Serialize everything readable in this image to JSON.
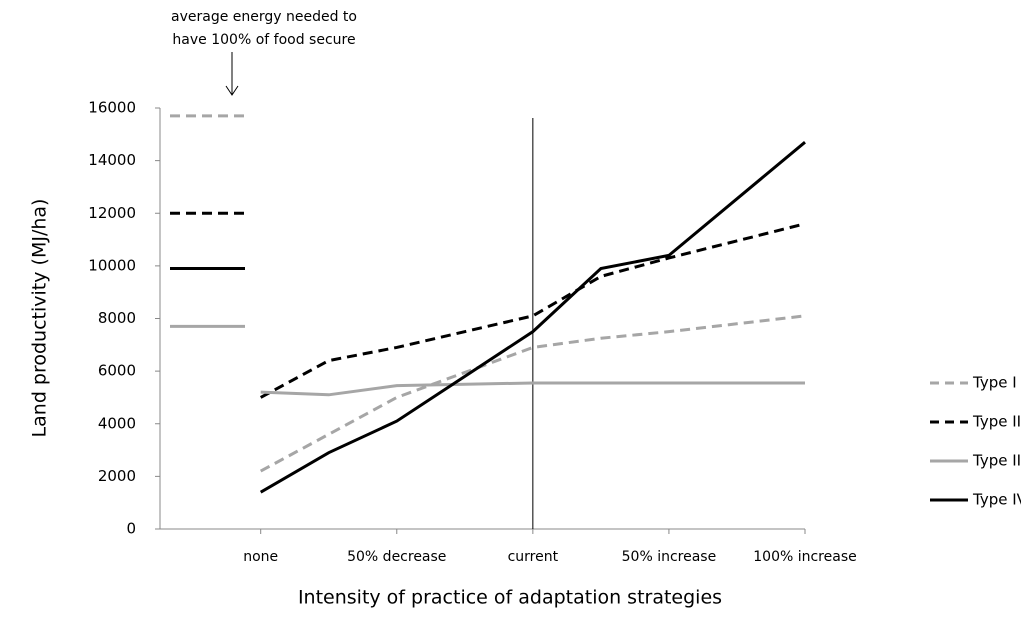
{
  "chart_data": {
    "type": "line",
    "annotation": [
      "average energy needed to",
      "have 100% of food secure"
    ],
    "x_label": "Intensity of practice of adaptation strategies",
    "y_label": "Land productivity (MJ/ha)",
    "x": [
      0,
      0.25,
      0.5,
      1,
      1.25,
      1.5,
      2
    ],
    "xlim": [
      -0.37,
      2
    ],
    "xticks": [
      {
        "value": 0,
        "label": "none"
      },
      {
        "value": 0.5,
        "label": "50% decrease"
      },
      {
        "value": 1,
        "label": "current"
      },
      {
        "value": 1.5,
        "label": "50% increase"
      },
      {
        "value": 2,
        "label": "100% increase"
      }
    ],
    "ylim": [
      0,
      16000
    ],
    "yticks": [
      0,
      2000,
      4000,
      6000,
      8000,
      10000,
      12000,
      14000,
      16000
    ],
    "vline": 1,
    "series": [
      {
        "name": "Type I",
        "color": "#a6a6a6",
        "dashed": true,
        "reference": 15700,
        "values": [
          2200,
          3600,
          5000,
          6900,
          7250,
          7500,
          8100
        ]
      },
      {
        "name": "Type II",
        "color": "#000000",
        "dashed": true,
        "reference": 12000,
        "values": [
          5000,
          6400,
          6900,
          8100,
          9600,
          10300,
          11600
        ]
      },
      {
        "name": "Type III",
        "color": "#a6a6a6",
        "dashed": false,
        "reference": 7700,
        "values": [
          5200,
          5100,
          5450,
          5550,
          5550,
          5550,
          5550
        ]
      },
      {
        "name": "Type IV",
        "color": "#000000",
        "dashed": false,
        "reference": 9900,
        "values": [
          1400,
          2900,
          4100,
          7500,
          9900,
          10400,
          14700
        ]
      }
    ]
  }
}
